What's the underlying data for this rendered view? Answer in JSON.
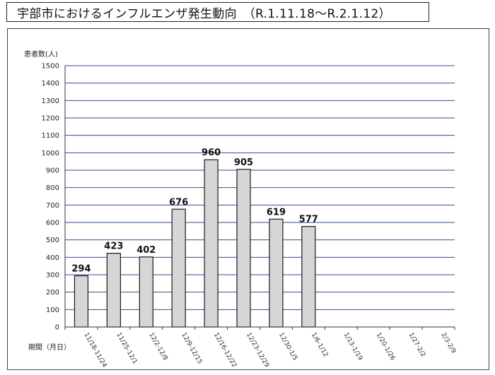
{
  "title": "宇部市におけるインフルエンザ発生動向　（R.1.11.18～R.2.1.12）",
  "chart_data": {
    "type": "bar",
    "title": "宇部市におけるインフルエンザ発生動向　（R.1.11.18～R.2.1.12）",
    "ylabel": "患者数(人)",
    "xlabel": "期間（月日）",
    "ylim": [
      0,
      1500
    ],
    "ytick_step": 100,
    "grid": true,
    "categories": [
      "11/18-11/24",
      "11/25-12/1",
      "12/2-12/8",
      "12/9-12/15",
      "12/16-12/22",
      "12/23-12/29",
      "12/30-1/5",
      "1/6-1/12",
      "1/13-1/19",
      "1/20-1/26",
      "1/27-2/2",
      "2/3-2/9"
    ],
    "values": [
      294,
      423,
      402,
      676,
      960,
      905,
      619,
      577,
      null,
      null,
      null,
      null
    ],
    "colors": {
      "bar_fill": "#d6d6d6",
      "bar_stroke": "#1a1a1a",
      "grid": "#2f4f8f",
      "axis": "#333333"
    }
  }
}
